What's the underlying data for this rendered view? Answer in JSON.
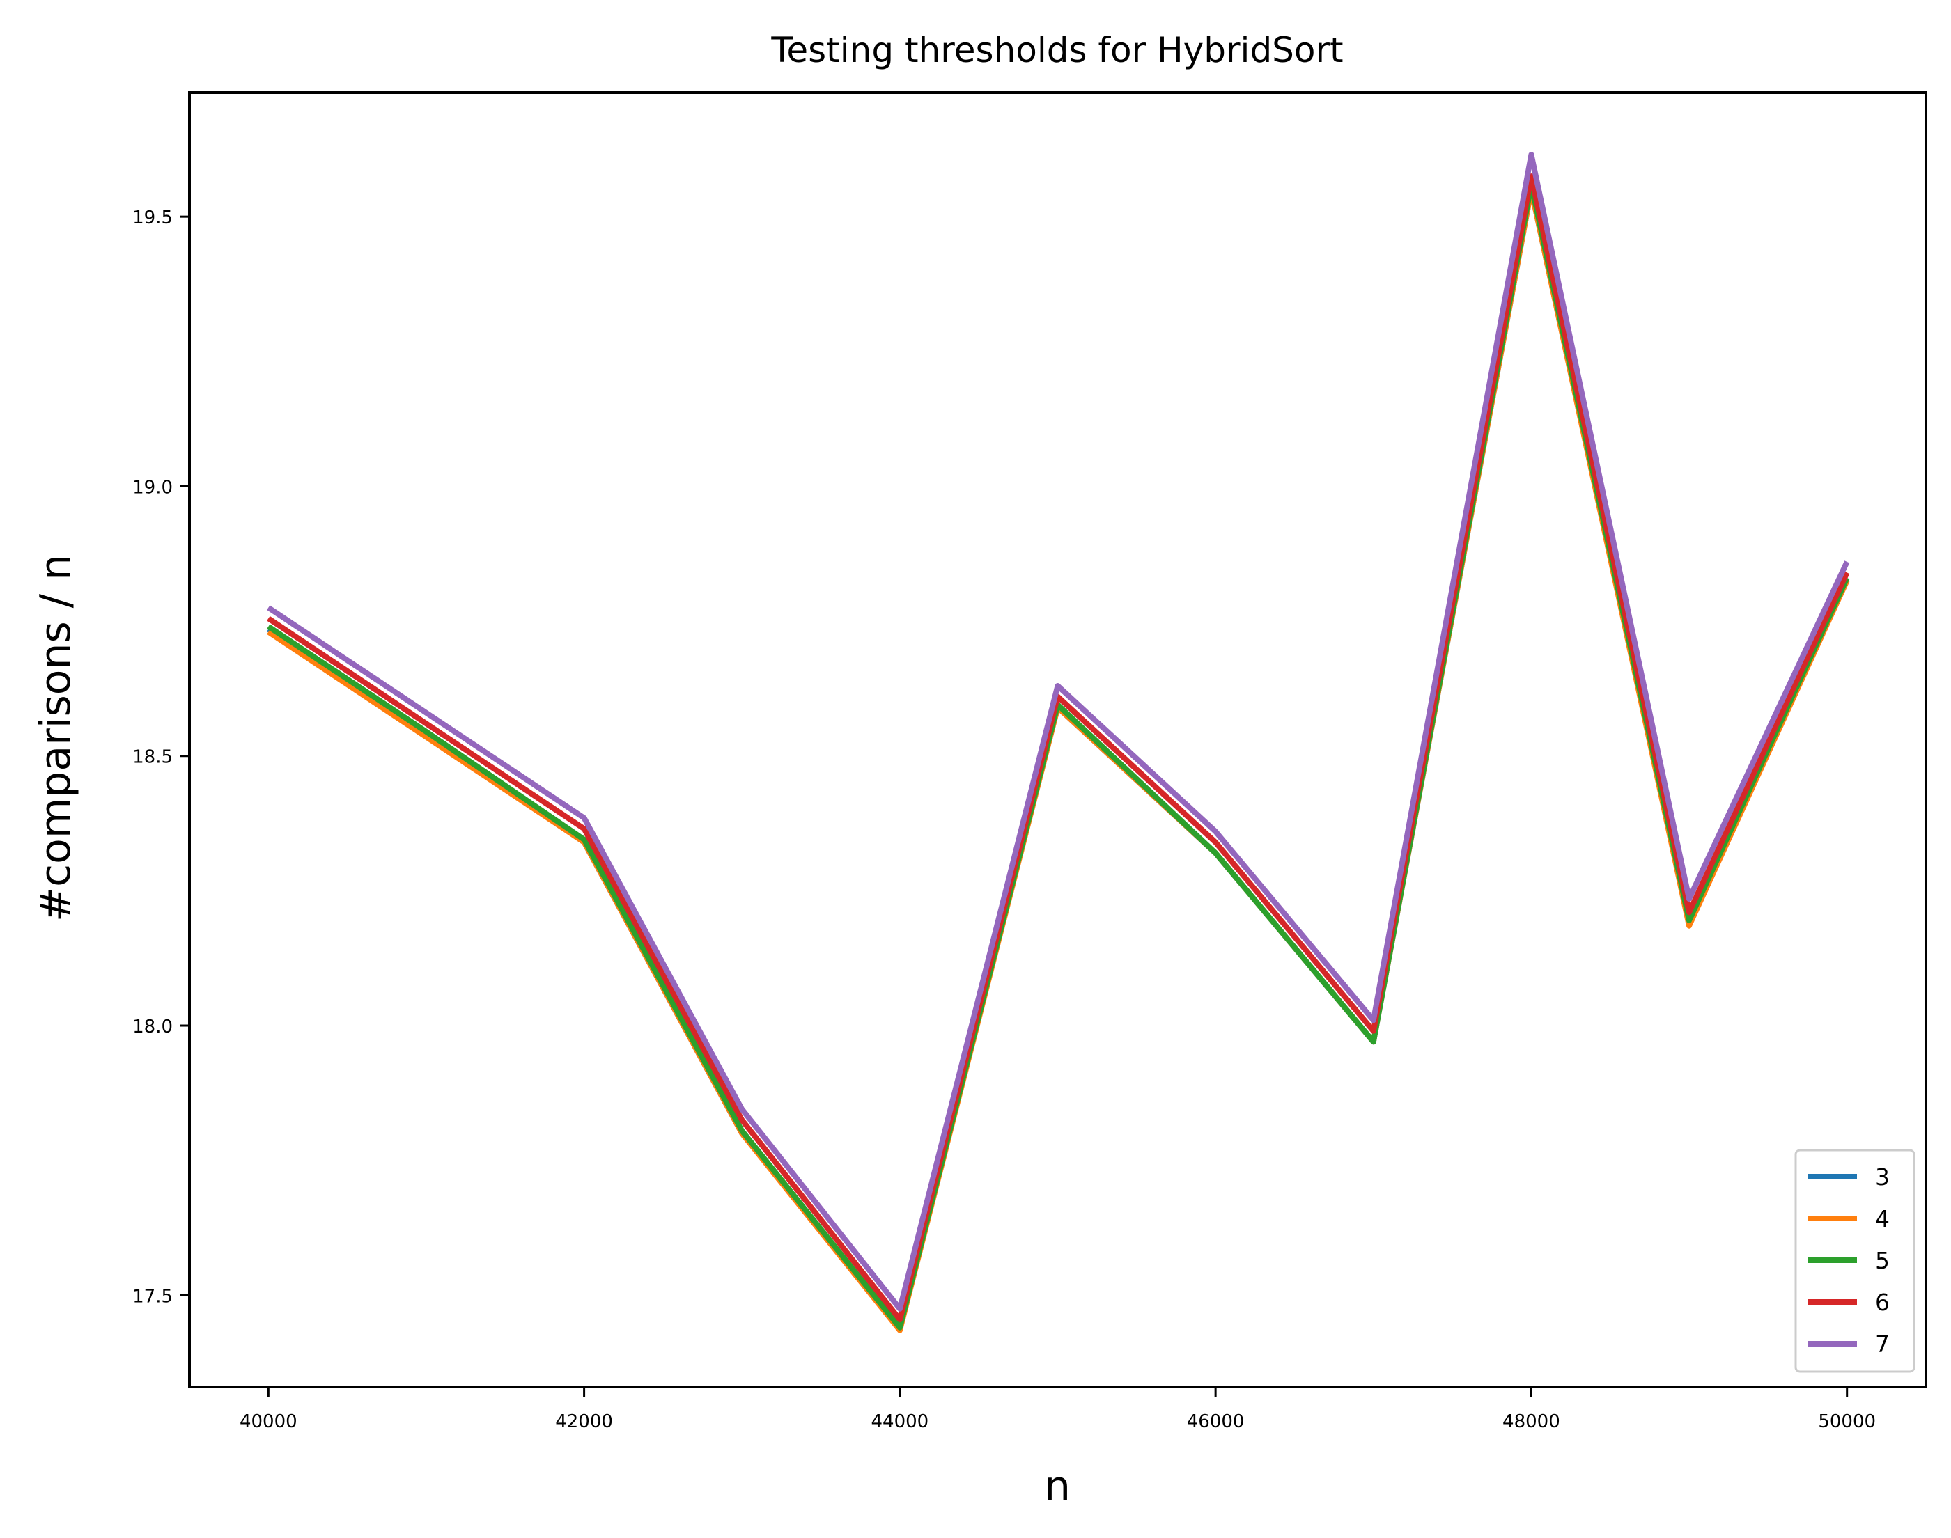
{
  "chart_data": {
    "type": "line",
    "title": "Testing thresholds for HybridSort",
    "xlabel": "n",
    "ylabel": "#comparisons / n",
    "x": [
      40000,
      41000,
      42000,
      43000,
      44000,
      45000,
      46000,
      47000,
      48000,
      49000,
      50000
    ],
    "xlim": [
      39500,
      50500
    ],
    "ylim": [
      17.33,
      19.73
    ],
    "xticks": [
      40000,
      42000,
      44000,
      46000,
      48000,
      50000
    ],
    "xtick_labels": [
      "40000",
      "42000",
      "44000",
      "46000",
      "48000",
      "50000"
    ],
    "yticks": [
      17.5,
      18.0,
      18.5,
      19.0,
      19.5
    ],
    "ytick_labels": [
      "17.5",
      "18.0",
      "18.5",
      "19.0",
      "19.5"
    ],
    "grid": false,
    "legend_position": "bottom-right",
    "series": [
      {
        "name": "3",
        "color": "#1f77b4",
        "values": [
          18.735,
          18.54,
          18.34,
          17.8,
          17.44,
          18.59,
          18.32,
          17.97,
          19.55,
          18.19,
          18.83
        ]
      },
      {
        "name": "4",
        "color": "#ff7f0e",
        "values": [
          18.73,
          18.535,
          18.34,
          17.8,
          17.435,
          18.59,
          18.32,
          17.97,
          19.55,
          18.185,
          18.825
        ]
      },
      {
        "name": "5",
        "color": "#2ca02c",
        "values": [
          18.74,
          18.545,
          18.345,
          17.805,
          17.44,
          18.595,
          18.32,
          17.97,
          19.56,
          18.195,
          18.83
        ]
      },
      {
        "name": "6",
        "color": "#d62728",
        "values": [
          18.755,
          18.56,
          18.365,
          17.825,
          17.455,
          18.61,
          18.34,
          17.99,
          19.575,
          18.21,
          18.84
        ]
      },
      {
        "name": "7",
        "color": "#9467bd",
        "values": [
          18.775,
          18.58,
          18.385,
          17.845,
          17.475,
          18.63,
          18.36,
          18.01,
          19.615,
          18.235,
          18.86
        ]
      }
    ]
  }
}
